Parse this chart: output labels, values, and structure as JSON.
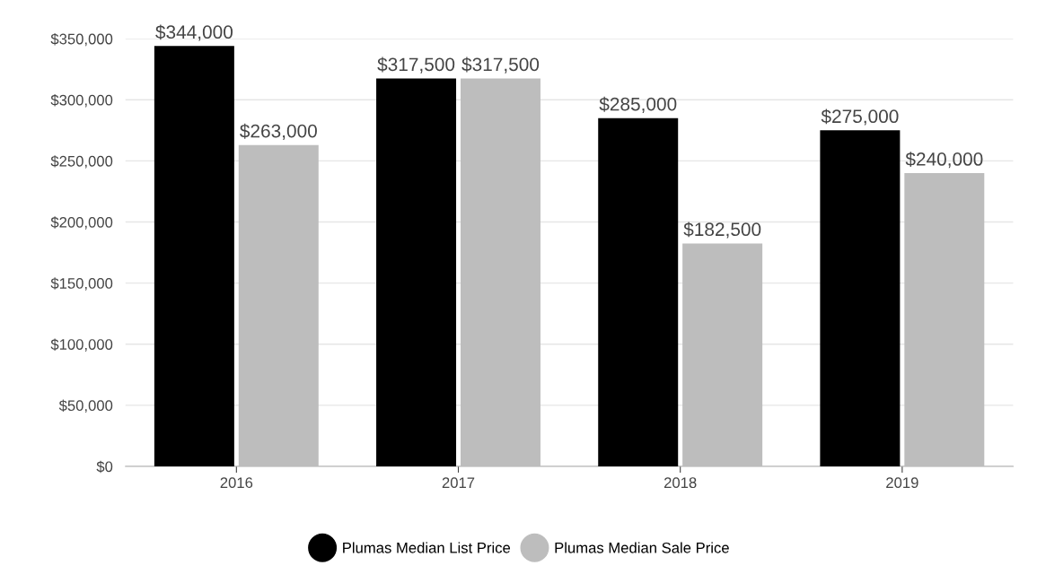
{
  "chart_data": {
    "type": "bar",
    "categories": [
      "2016",
      "2017",
      "2018",
      "2019"
    ],
    "series": [
      {
        "name": "Plumas Median List Price",
        "color": "#000000",
        "values": [
          344000,
          317500,
          285000,
          275000
        ],
        "value_labels": [
          "$344,000",
          "$317,500",
          "$285,000",
          "$275,000"
        ]
      },
      {
        "name": "Plumas Median Sale Price",
        "color": "#bdbdbd",
        "values": [
          263000,
          317500,
          182500,
          240000
        ],
        "value_labels": [
          "$263,000",
          "$317,500",
          "$182,500",
          "$240,000"
        ]
      }
    ],
    "ylim": [
      0,
      350000
    ],
    "yticks": [
      {
        "value": 0,
        "label": "$0"
      },
      {
        "value": 50000,
        "label": "$50,000"
      },
      {
        "value": 100000,
        "label": "$100,000"
      },
      {
        "value": 150000,
        "label": "$150,000"
      },
      {
        "value": 200000,
        "label": "$200,000"
      },
      {
        "value": 250000,
        "label": "$250,000"
      },
      {
        "value": 300000,
        "label": "$300,000"
      },
      {
        "value": 350000,
        "label": "$350,000"
      }
    ],
    "grid": "y",
    "legend": "bottom",
    "marker": "circle"
  }
}
